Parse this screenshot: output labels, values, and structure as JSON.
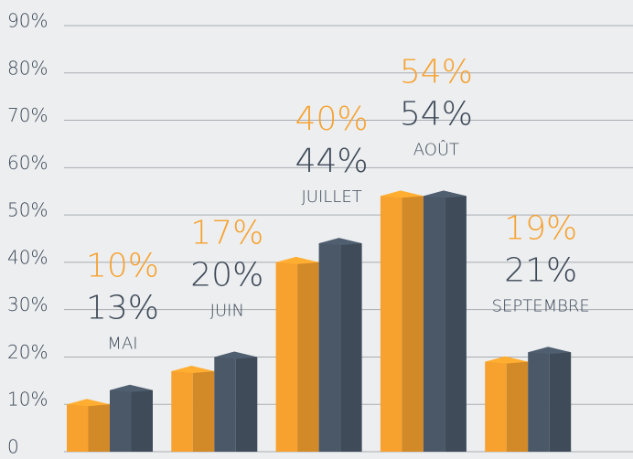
{
  "chart_data": {
    "type": "bar",
    "categories": [
      "MAI",
      "JUIN",
      "JUILLET",
      "AOÛT",
      "SEPTEMBRE"
    ],
    "series": [
      {
        "color": "#f7a12e",
        "values": [
          10,
          17,
          40,
          54,
          19
        ],
        "value_labels": [
          "10%",
          "17%",
          "40%",
          "54%",
          "19%"
        ]
      },
      {
        "color": "#4a5868",
        "values": [
          13,
          20,
          44,
          54,
          21
        ],
        "value_labels": [
          "13%",
          "20%",
          "44%",
          "54%",
          "21%"
        ]
      }
    ],
    "ylim": [
      0,
      90
    ],
    "yticks": [
      0,
      {
        "value": 10,
        "label": "10%"
      },
      {
        "value": 20,
        "label": "20%"
      },
      {
        "value": 30,
        "label": "30%"
      },
      {
        "value": 40,
        "label": "40%"
      },
      {
        "value": 50,
        "label": "50%"
      },
      {
        "value": 60,
        "label": "60%"
      },
      {
        "value": 70,
        "label": "70%"
      },
      {
        "value": 80,
        "label": "80%"
      },
      {
        "value": 90,
        "label": "90%"
      }
    ],
    "grid": true
  }
}
